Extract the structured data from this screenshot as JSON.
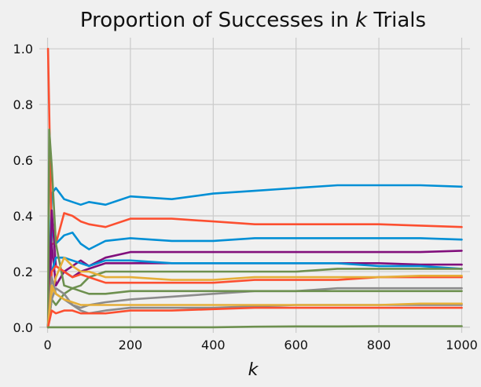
{
  "chart_data": {
    "type": "line",
    "title": "Proportion of Successes in k Trials",
    "title_prefix": "Proportion of Successes in ",
    "title_var": "k",
    "title_suffix": " Trials",
    "xlabel": "k",
    "ylabel": "",
    "xlim": [
      -20,
      1020
    ],
    "ylim": [
      -0.02,
      1.04
    ],
    "xticks": [
      0,
      200,
      400,
      600,
      800,
      1000
    ],
    "yticks": [
      0.0,
      0.2,
      0.4,
      0.6,
      0.8,
      1.0
    ],
    "xtick_labels": [
      "0",
      "200",
      "400",
      "600",
      "800",
      "1000"
    ],
    "ytick_labels": [
      "0.0",
      "0.2",
      "0.4",
      "0.6",
      "0.8",
      "1.0"
    ],
    "grid": true,
    "series": [
      {
        "color": "#008fd5",
        "x": [
          1,
          10,
          20,
          40,
          60,
          80,
          100,
          140,
          200,
          300,
          400,
          500,
          600,
          700,
          800,
          900,
          1000
        ],
        "values": [
          0.0,
          0.48,
          0.5,
          0.46,
          0.45,
          0.44,
          0.45,
          0.44,
          0.47,
          0.46,
          0.48,
          0.49,
          0.5,
          0.51,
          0.51,
          0.51,
          0.505
        ]
      },
      {
        "color": "#fc4f30",
        "x": [
          1,
          10,
          20,
          40,
          60,
          80,
          100,
          140,
          200,
          300,
          400,
          500,
          600,
          700,
          800,
          900,
          1000
        ],
        "values": [
          1.0,
          0.3,
          0.3,
          0.41,
          0.4,
          0.38,
          0.37,
          0.36,
          0.39,
          0.39,
          0.38,
          0.37,
          0.37,
          0.37,
          0.37,
          0.365,
          0.36
        ]
      },
      {
        "color": "#008fd5",
        "x": [
          1,
          10,
          20,
          40,
          60,
          80,
          100,
          140,
          200,
          300,
          400,
          500,
          600,
          700,
          800,
          900,
          1000
        ],
        "values": [
          0.0,
          0.35,
          0.3,
          0.33,
          0.34,
          0.3,
          0.28,
          0.31,
          0.32,
          0.31,
          0.31,
          0.32,
          0.32,
          0.32,
          0.32,
          0.32,
          0.315
        ]
      },
      {
        "color": "#810f7c",
        "x": [
          1,
          10,
          20,
          40,
          60,
          80,
          100,
          140,
          200,
          300,
          400,
          500,
          600,
          700,
          800,
          900,
          1000
        ],
        "values": [
          0.0,
          0.42,
          0.22,
          0.2,
          0.22,
          0.24,
          0.22,
          0.25,
          0.27,
          0.27,
          0.27,
          0.27,
          0.27,
          0.27,
          0.27,
          0.27,
          0.275
        ]
      },
      {
        "color": "#810f7c",
        "x": [
          1,
          10,
          20,
          40,
          60,
          80,
          100,
          140,
          200,
          300,
          400,
          500,
          600,
          700,
          800,
          900,
          1000
        ],
        "values": [
          0.0,
          0.3,
          0.15,
          0.2,
          0.18,
          0.2,
          0.21,
          0.23,
          0.23,
          0.23,
          0.23,
          0.23,
          0.23,
          0.23,
          0.23,
          0.225,
          0.225
        ]
      },
      {
        "color": "#008fd5",
        "x": [
          1,
          10,
          20,
          40,
          60,
          80,
          100,
          140,
          200,
          300,
          400,
          500,
          600,
          700,
          800,
          900,
          1000
        ],
        "values": [
          0.0,
          0.2,
          0.25,
          0.25,
          0.24,
          0.23,
          0.22,
          0.24,
          0.24,
          0.23,
          0.23,
          0.23,
          0.23,
          0.23,
          0.22,
          0.22,
          0.21
        ]
      },
      {
        "color": "#6d904f",
        "x": [
          1,
          4,
          10,
          20,
          40,
          60,
          80,
          100,
          140,
          200,
          300,
          400,
          500,
          600,
          700,
          800,
          900,
          1000
        ],
        "values": [
          0.0,
          0.71,
          0.58,
          0.3,
          0.15,
          0.14,
          0.15,
          0.18,
          0.2,
          0.2,
          0.2,
          0.2,
          0.2,
          0.2,
          0.21,
          0.21,
          0.21,
          0.21
        ]
      },
      {
        "color": "#fc4f30",
        "x": [
          1,
          10,
          20,
          40,
          60,
          80,
          100,
          140,
          200,
          300,
          400,
          500,
          600,
          700,
          800,
          900,
          1000
        ],
        "values": [
          0.0,
          0.2,
          0.22,
          0.2,
          0.18,
          0.19,
          0.18,
          0.16,
          0.16,
          0.16,
          0.16,
          0.17,
          0.17,
          0.17,
          0.18,
          0.18,
          0.18
        ]
      },
      {
        "color": "#e5ae38",
        "x": [
          1,
          10,
          20,
          40,
          60,
          80,
          100,
          140,
          200,
          300,
          400,
          500,
          600,
          700,
          800,
          900,
          1000
        ],
        "values": [
          0.0,
          0.12,
          0.18,
          0.25,
          0.22,
          0.2,
          0.2,
          0.18,
          0.18,
          0.17,
          0.17,
          0.18,
          0.18,
          0.18,
          0.18,
          0.185,
          0.185
        ]
      },
      {
        "color": "#8b8b8b",
        "x": [
          1,
          10,
          20,
          40,
          60,
          80,
          100,
          140,
          200,
          300,
          400,
          500,
          600,
          700,
          800,
          900,
          1000
        ],
        "values": [
          0.0,
          0.18,
          0.12,
          0.1,
          0.08,
          0.07,
          0.08,
          0.09,
          0.1,
          0.11,
          0.12,
          0.13,
          0.13,
          0.14,
          0.14,
          0.14,
          0.14
        ]
      },
      {
        "color": "#6d904f",
        "x": [
          1,
          10,
          20,
          40,
          60,
          80,
          100,
          140,
          200,
          300,
          400,
          500,
          600,
          700,
          800,
          900,
          1000
        ],
        "values": [
          0.0,
          0.1,
          0.08,
          0.12,
          0.14,
          0.13,
          0.12,
          0.12,
          0.13,
          0.13,
          0.13,
          0.13,
          0.13,
          0.13,
          0.13,
          0.13,
          0.13
        ]
      },
      {
        "color": "#8b8b8b",
        "x": [
          1,
          10,
          20,
          40,
          60,
          80,
          100,
          140,
          200,
          300,
          400,
          500,
          600,
          700,
          800,
          900,
          1000
        ],
        "values": [
          0.0,
          0.1,
          0.14,
          0.12,
          0.08,
          0.06,
          0.05,
          0.06,
          0.07,
          0.07,
          0.07,
          0.075,
          0.08,
          0.08,
          0.08,
          0.08,
          0.08
        ]
      },
      {
        "color": "#e5ae38",
        "x": [
          1,
          10,
          20,
          40,
          60,
          80,
          100,
          140,
          200,
          300,
          400,
          500,
          600,
          700,
          800,
          900,
          1000
        ],
        "values": [
          0.0,
          0.15,
          0.12,
          0.1,
          0.09,
          0.08,
          0.08,
          0.08,
          0.08,
          0.08,
          0.08,
          0.08,
          0.08,
          0.08,
          0.08,
          0.085,
          0.085
        ]
      },
      {
        "color": "#fc4f30",
        "x": [
          1,
          10,
          20,
          40,
          60,
          80,
          100,
          140,
          200,
          300,
          400,
          500,
          600,
          700,
          800,
          900,
          1000
        ],
        "values": [
          0.0,
          0.06,
          0.05,
          0.06,
          0.06,
          0.05,
          0.05,
          0.05,
          0.06,
          0.06,
          0.065,
          0.07,
          0.07,
          0.07,
          0.07,
          0.07,
          0.07
        ]
      },
      {
        "color": "#6d904f",
        "x": [
          1,
          10,
          100,
          400,
          500,
          600,
          700,
          800,
          900,
          1000
        ],
        "values": [
          0.0,
          0.0,
          0.0,
          0.0,
          0.002,
          0.003,
          0.003,
          0.004,
          0.004,
          0.004
        ]
      }
    ]
  }
}
